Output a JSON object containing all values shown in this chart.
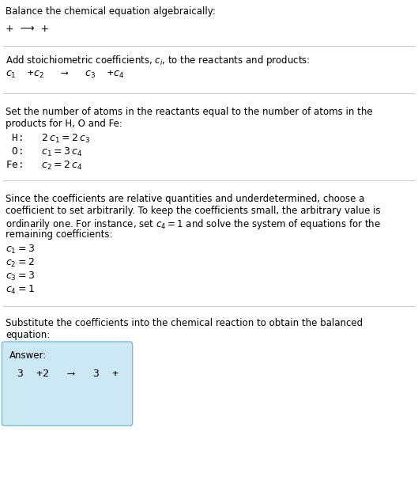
{
  "title": "Balance the chemical equation algebraically:",
  "reaction_line": "+  ⟶  +",
  "s1_header": "Add stoichiometric coefficients, $c_i$, to the reactants and products:",
  "s1_eq": "$c_1$  +$c_2$   ⟶   $c_3$  +$c_4$",
  "s2_header1": "Set the number of atoms in the reactants equal to the number of atoms in the",
  "s2_header2": "products for H, O and Fe:",
  "s2_H": " H:   $2\\,c_1 = 2\\,c_3$",
  "s2_O": " O:   $c_1 = 3\\,c_4$",
  "s2_Fe": "Fe:   $c_2 = 2\\,c_4$",
  "s3_header1": "Since the coefficients are relative quantities and underdetermined, choose a",
  "s3_header2": "coefficient to set arbitrarily. To keep the coefficients small, the arbitrary value is",
  "s3_header3": "ordinarily one. For instance, set $c_4 = 1$ and solve the system of equations for the",
  "s3_header4": "remaining coefficients:",
  "s3_c1": "$c_1 = 3$",
  "s3_c2": "$c_2 = 2$",
  "s3_c3": "$c_3 = 3$",
  "s3_c4": "$c_4 = 1$",
  "s4_header1": "Substitute the coefficients into the chemical reaction to obtain the balanced",
  "s4_header2": "equation:",
  "answer_label": "Answer:",
  "answer_eq": "3  +2   ⟶   3  +",
  "bg_color": "#ffffff",
  "text_color": "#000000",
  "answer_bg": "#cce8f4",
  "answer_border": "#7bbcd5",
  "divider_color": "#cccccc",
  "fs_body": 8.5,
  "fs_eq": 9.0,
  "fs_answer": 9.5
}
